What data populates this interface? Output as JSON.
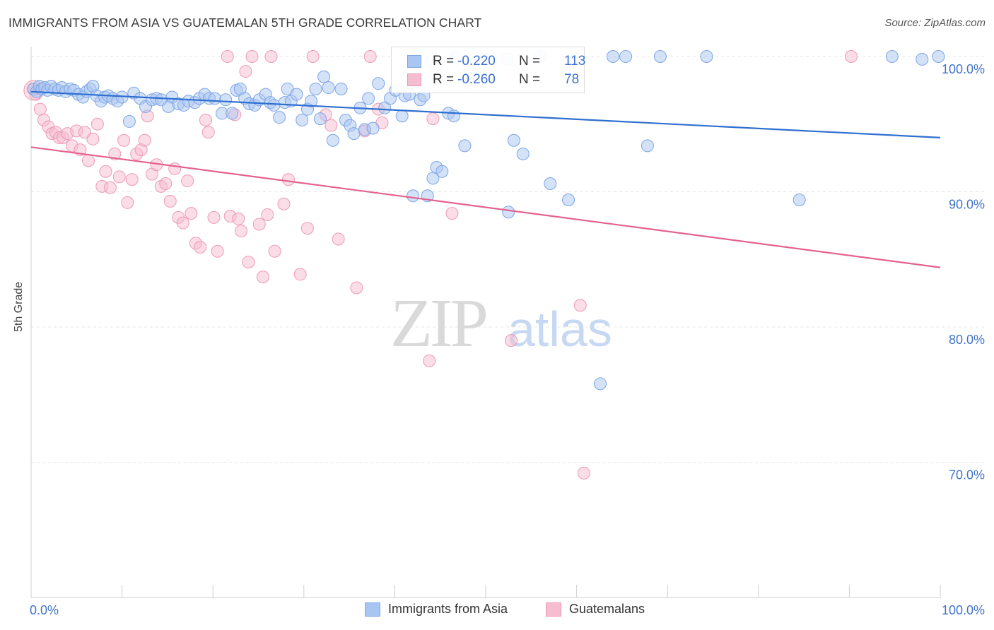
{
  "header": {
    "title": "IMMIGRANTS FROM ASIA VS GUATEMALAN 5TH GRADE CORRELATION CHART",
    "source": "Source: ZipAtlas.com"
  },
  "watermark": {
    "zip": "ZIP",
    "atlas": "atlas"
  },
  "colors": {
    "blue_fill": "#a9c6f2",
    "blue_stroke": "#7ea6e6",
    "blue_line": "#2f6fd0",
    "pink_fill": "#f6bcd0",
    "pink_stroke": "#ee9ab7",
    "pink_line": "#e3628f",
    "tick_label": "#4274c9",
    "grid": "#e6e6e6"
  },
  "legend": {
    "r_label": "R =",
    "n_label": "N =",
    "items": [
      {
        "r": "-0.220",
        "n": "113"
      },
      {
        "r": "-0.260",
        "n": "78"
      }
    ]
  },
  "chart_data": {
    "type": "scatter",
    "title": "IMMIGRANTS FROM ASIA VS GUATEMALAN 5TH GRADE CORRELATION CHART",
    "xlabel": "",
    "ylabel": "5th Grade",
    "x_ticks": [
      "0.0%",
      "100.0%"
    ],
    "y_ticks": [
      "100.0%",
      "90.0%",
      "80.0%",
      "70.0%"
    ],
    "y_tick_values": [
      100,
      90,
      80,
      70
    ],
    "xlim": [
      0,
      100
    ],
    "ylim": [
      60.5,
      100.7
    ],
    "grid": true,
    "legend_position": "top-center",
    "series": [
      {
        "name": "Immigrants from Asia",
        "r": -0.22,
        "n": 113,
        "trend": {
          "x": [
            0,
            100
          ],
          "y": [
            97.4,
            94.0
          ]
        },
        "points": [
          [
            0.3,
            97.6
          ],
          [
            0.6,
            97.4
          ],
          [
            0.9,
            97.8
          ],
          [
            1.2,
            97.6
          ],
          [
            1.5,
            97.7
          ],
          [
            1.8,
            97.5
          ],
          [
            2.2,
            97.8
          ],
          [
            2.6,
            97.6
          ],
          [
            3.0,
            97.5
          ],
          [
            3.4,
            97.7
          ],
          [
            3.8,
            97.4
          ],
          [
            4.3,
            97.6
          ],
          [
            4.7,
            97.5
          ],
          [
            5.2,
            97.2
          ],
          [
            5.7,
            97.0
          ],
          [
            6.1,
            97.4
          ],
          [
            6.5,
            97.6
          ],
          [
            6.8,
            97.8
          ],
          [
            7.2,
            97.1
          ],
          [
            7.7,
            96.7
          ],
          [
            8.1,
            97.0
          ],
          [
            8.5,
            97.1
          ],
          [
            9.0,
            96.9
          ],
          [
            9.5,
            96.7
          ],
          [
            10.0,
            97.0
          ],
          [
            10.8,
            95.2
          ],
          [
            11.3,
            97.3
          ],
          [
            12.0,
            96.9
          ],
          [
            12.6,
            96.3
          ],
          [
            13.3,
            96.8
          ],
          [
            13.8,
            96.9
          ],
          [
            14.3,
            96.8
          ],
          [
            15.1,
            96.3
          ],
          [
            15.5,
            97.0
          ],
          [
            16.2,
            96.5
          ],
          [
            16.8,
            96.4
          ],
          [
            17.3,
            96.7
          ],
          [
            18.0,
            96.6
          ],
          [
            18.5,
            96.9
          ],
          [
            19.1,
            97.2
          ],
          [
            19.6,
            96.9
          ],
          [
            20.2,
            96.9
          ],
          [
            21.0,
            95.8
          ],
          [
            21.4,
            96.8
          ],
          [
            22.1,
            95.8
          ],
          [
            22.6,
            97.5
          ],
          [
            23.0,
            97.6
          ],
          [
            23.5,
            96.9
          ],
          [
            24.0,
            96.5
          ],
          [
            24.6,
            96.4
          ],
          [
            25.1,
            96.8
          ],
          [
            25.8,
            97.2
          ],
          [
            26.3,
            96.6
          ],
          [
            26.7,
            96.4
          ],
          [
            27.3,
            95.5
          ],
          [
            27.9,
            96.6
          ],
          [
            28.2,
            97.6
          ],
          [
            28.6,
            96.7
          ],
          [
            29.2,
            97.2
          ],
          [
            29.8,
            95.3
          ],
          [
            30.4,
            96.1
          ],
          [
            30.8,
            96.7
          ],
          [
            31.3,
            97.6
          ],
          [
            31.8,
            95.4
          ],
          [
            32.2,
            98.5
          ],
          [
            32.7,
            97.7
          ],
          [
            33.2,
            93.8
          ],
          [
            34.1,
            97.6
          ],
          [
            34.6,
            95.3
          ],
          [
            35.1,
            94.9
          ],
          [
            35.5,
            94.3
          ],
          [
            36.2,
            96.2
          ],
          [
            36.7,
            94.6
          ],
          [
            37.1,
            96.9
          ],
          [
            37.6,
            94.7
          ],
          [
            38.2,
            98.0
          ],
          [
            38.9,
            96.2
          ],
          [
            39.5,
            96.9
          ],
          [
            40.1,
            97.5
          ],
          [
            40.8,
            95.6
          ],
          [
            41.1,
            97.1
          ],
          [
            41.6,
            97.2
          ],
          [
            42.0,
            89.7
          ],
          [
            42.8,
            96.8
          ],
          [
            43.2,
            97.1
          ],
          [
            43.6,
            89.7
          ],
          [
            44.2,
            91.0
          ],
          [
            44.6,
            91.8
          ],
          [
            45.2,
            91.5
          ],
          [
            45.9,
            95.8
          ],
          [
            46.5,
            95.6
          ],
          [
            47.7,
            93.4
          ],
          [
            48.2,
            98.0
          ],
          [
            50.0,
            99.8
          ],
          [
            52.4,
            99.8
          ],
          [
            52.5,
            88.5
          ],
          [
            53.1,
            93.8
          ],
          [
            54.1,
            92.8
          ],
          [
            57.1,
            90.6
          ],
          [
            59.1,
            89.4
          ],
          [
            62.6,
            75.8
          ],
          [
            64.0,
            100.0
          ],
          [
            65.4,
            100.0
          ],
          [
            67.8,
            93.4
          ],
          [
            69.2,
            100.0
          ],
          [
            74.3,
            100.0
          ],
          [
            84.5,
            89.4
          ],
          [
            94.7,
            100.0
          ],
          [
            98.0,
            99.8
          ],
          [
            99.8,
            100.0
          ],
          [
            56.0,
            100.0
          ],
          [
            46.7,
            99.9
          ],
          [
            44.0,
            99.6
          ]
        ]
      },
      {
        "name": "Guatemalans",
        "r": -0.26,
        "n": 78,
        "trend": {
          "x": [
            0,
            100
          ],
          "y": [
            93.3,
            84.4
          ]
        },
        "points": [
          [
            0.2,
            97.6
          ],
          [
            0.5,
            97.2
          ],
          [
            1.0,
            96.1
          ],
          [
            1.4,
            95.3
          ],
          [
            1.9,
            94.8
          ],
          [
            2.3,
            94.3
          ],
          [
            2.7,
            94.4
          ],
          [
            3.1,
            94.0
          ],
          [
            3.5,
            94.0
          ],
          [
            4.0,
            94.3
          ],
          [
            4.5,
            93.4
          ],
          [
            5.0,
            94.5
          ],
          [
            5.4,
            93.1
          ],
          [
            5.9,
            94.4
          ],
          [
            6.3,
            92.3
          ],
          [
            6.8,
            93.9
          ],
          [
            7.3,
            95.0
          ],
          [
            7.8,
            90.4
          ],
          [
            8.2,
            91.5
          ],
          [
            8.7,
            90.3
          ],
          [
            9.2,
            92.8
          ],
          [
            9.7,
            91.1
          ],
          [
            10.2,
            93.8
          ],
          [
            10.6,
            89.2
          ],
          [
            11.1,
            90.9
          ],
          [
            11.6,
            92.8
          ],
          [
            12.1,
            93.1
          ],
          [
            12.5,
            93.8
          ],
          [
            12.8,
            95.6
          ],
          [
            13.3,
            91.3
          ],
          [
            13.8,
            92.0
          ],
          [
            14.3,
            90.4
          ],
          [
            14.8,
            90.6
          ],
          [
            15.3,
            89.3
          ],
          [
            15.8,
            91.7
          ],
          [
            16.2,
            88.1
          ],
          [
            16.7,
            87.7
          ],
          [
            17.2,
            90.8
          ],
          [
            17.6,
            88.4
          ],
          [
            18.1,
            86.2
          ],
          [
            18.6,
            85.9
          ],
          [
            19.2,
            95.3
          ],
          [
            19.5,
            94.4
          ],
          [
            20.1,
            88.1
          ],
          [
            20.5,
            85.6
          ],
          [
            21.6,
            100.0
          ],
          [
            21.9,
            88.2
          ],
          [
            22.4,
            95.7
          ],
          [
            22.8,
            88.0
          ],
          [
            23.1,
            87.1
          ],
          [
            23.6,
            98.9
          ],
          [
            23.9,
            84.8
          ],
          [
            24.3,
            100.0
          ],
          [
            25.1,
            87.6
          ],
          [
            25.5,
            83.7
          ],
          [
            26.0,
            88.3
          ],
          [
            26.4,
            100.0
          ],
          [
            26.8,
            85.6
          ],
          [
            27.8,
            89.1
          ],
          [
            28.3,
            90.9
          ],
          [
            29.6,
            83.9
          ],
          [
            30.4,
            87.3
          ],
          [
            31.0,
            100.0
          ],
          [
            32.4,
            95.7
          ],
          [
            33.0,
            94.9
          ],
          [
            33.8,
            86.5
          ],
          [
            35.8,
            82.9
          ],
          [
            36.7,
            94.5
          ],
          [
            37.3,
            100.0
          ],
          [
            38.2,
            96.1
          ],
          [
            38.6,
            95.1
          ],
          [
            43.8,
            77.5
          ],
          [
            44.2,
            95.4
          ],
          [
            46.3,
            88.4
          ],
          [
            52.8,
            79.0
          ],
          [
            60.4,
            81.6
          ],
          [
            60.8,
            69.2
          ],
          [
            90.2,
            100.0
          ]
        ]
      }
    ]
  },
  "bottom_legend": {
    "items": [
      "Immigrants from Asia",
      "Guatemalans"
    ]
  }
}
